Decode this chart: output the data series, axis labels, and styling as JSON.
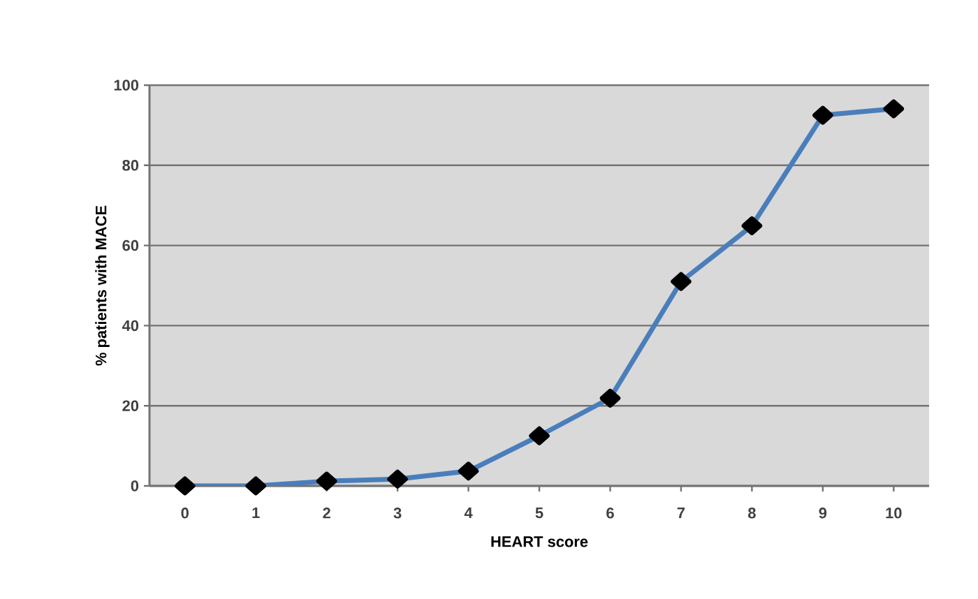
{
  "chart_data": {
    "type": "line",
    "xlabel": "HEART score",
    "ylabel": "% patients with MACE",
    "categories": [
      "0",
      "1",
      "2",
      "3",
      "4",
      "5",
      "6",
      "7",
      "8",
      "9",
      "10"
    ],
    "series": [
      {
        "color": "#4a7ebb",
        "values": [
          0,
          0,
          1.2,
          1.7,
          3.7,
          12.5,
          21.9,
          51,
          64.9,
          92.5,
          94.1
        ]
      }
    ],
    "ylim": [
      0,
      100
    ],
    "yticks": [
      0,
      20,
      40,
      60,
      80,
      100
    ],
    "grid": "y",
    "marker": "diamond",
    "line_style": "solid"
  }
}
